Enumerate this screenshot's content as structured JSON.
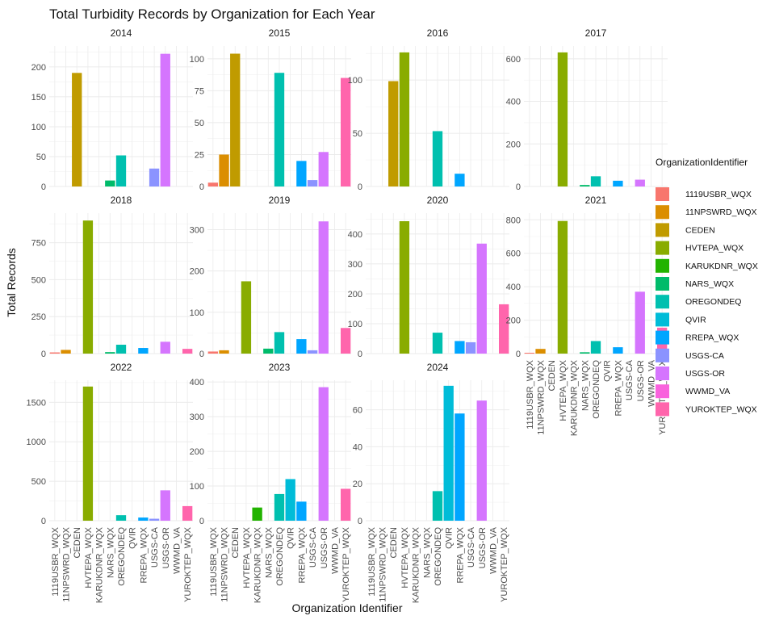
{
  "chart_data": {
    "type": "bar",
    "title": "Total Turbidity Records by Organization for Each Year",
    "xlabel": "Organization Identifier",
    "ylabel": "Total Records",
    "legend_title": "OrganizationIdentifier",
    "legend_position": "right",
    "grid": true,
    "categories": [
      "1119USBR_WQX",
      "11NPSWRD_WQX",
      "CEDEN",
      "HVTEPA_WQX",
      "KARUKDNR_WQX",
      "NARS_WQX",
      "OREGONDEQ",
      "QVIR",
      "RREPA_WQX",
      "USGS-CA",
      "USGS-OR",
      "WWMD_VA",
      "YUROKTEP_WQX"
    ],
    "colors": [
      "#F8766D",
      "#DB8E00",
      "#AEA200",
      "#64B200",
      "#00BD5C",
      "#00C1A7",
      "#00BADE",
      "#00A6FF",
      "#B385FF",
      "#EF67EB",
      "#FF63B6"
    ],
    "legend": [
      {
        "name": "1119USBR_WQX",
        "color": "#F8766D"
      },
      {
        "name": "11NPSWRD_WQX",
        "color": "#DB8E00"
      },
      {
        "name": "CEDEN",
        "color": "#C09B00"
      },
      {
        "name": "HVTEPA_WQX",
        "color": "#89AC00"
      },
      {
        "name": "KARUKDNR_WQX",
        "color": "#22B300"
      },
      {
        "name": "NARS_WQX",
        "color": "#00BB6A"
      },
      {
        "name": "OREGONDEQ",
        "color": "#00C0AF"
      },
      {
        "name": "QVIR",
        "color": "#00BCD8"
      },
      {
        "name": "RREPA_WQX",
        "color": "#00A6FF"
      },
      {
        "name": "USGS-CA",
        "color": "#8B93FF"
      },
      {
        "name": "USGS-OR",
        "color": "#D575FE"
      },
      {
        "name": "WWMD_VA",
        "color": "#F962DD"
      },
      {
        "name": "YUROKTEP_WQX",
        "color": "#FF65AC"
      }
    ],
    "panels": [
      {
        "year": "2014",
        "ylim": [
          0,
          235
        ],
        "yticks": [
          0,
          50,
          100,
          150,
          200
        ],
        "values": [
          0,
          0,
          190,
          0,
          0,
          10,
          52,
          0,
          0,
          30,
          222,
          0,
          0
        ]
      },
      {
        "year": "2015",
        "ylim": [
          0,
          110
        ],
        "yticks": [
          0,
          25,
          50,
          75,
          100
        ],
        "values": [
          3,
          25,
          104,
          0,
          0,
          0,
          89,
          0,
          20,
          5,
          27,
          0,
          85
        ]
      },
      {
        "year": "2016",
        "ylim": [
          0,
          132
        ],
        "yticks": [
          0,
          50,
          100
        ],
        "values": [
          0,
          0,
          99,
          126,
          0,
          0,
          52,
          0,
          12,
          0,
          0,
          0,
          0
        ]
      },
      {
        "year": "2017",
        "ylim": [
          0,
          660
        ],
        "yticks": [
          0,
          200,
          400,
          600
        ],
        "values": [
          0,
          0,
          0,
          630,
          0,
          7,
          48,
          0,
          27,
          0,
          32,
          0,
          0
        ]
      },
      {
        "year": "2018",
        "ylim": [
          0,
          950
        ],
        "yticks": [
          0,
          250,
          500,
          750
        ],
        "values": [
          8,
          25,
          0,
          900,
          0,
          10,
          60,
          0,
          38,
          0,
          80,
          0,
          32
        ]
      },
      {
        "year": "2019",
        "ylim": [
          0,
          340
        ],
        "yticks": [
          0,
          100,
          200,
          300
        ],
        "values": [
          5,
          8,
          0,
          175,
          0,
          12,
          52,
          0,
          35,
          8,
          320,
          0,
          62
        ]
      },
      {
        "year": "2020",
        "ylim": [
          0,
          470
        ],
        "yticks": [
          0,
          100,
          200,
          300,
          400
        ],
        "values": [
          0,
          0,
          0,
          443,
          0,
          0,
          70,
          0,
          42,
          38,
          368,
          0,
          165
        ]
      },
      {
        "year": "2021",
        "ylim": [
          0,
          840
        ],
        "yticks": [
          0,
          200,
          400,
          600,
          800
        ],
        "values": [
          5,
          28,
          0,
          793,
          0,
          8,
          75,
          0,
          38,
          0,
          370,
          0,
          155
        ]
      },
      {
        "year": "2022",
        "ylim": [
          0,
          1780
        ],
        "yticks": [
          0,
          500,
          1000,
          1500
        ],
        "values": [
          0,
          0,
          0,
          1700,
          0,
          0,
          70,
          0,
          40,
          25,
          385,
          0,
          185
        ]
      },
      {
        "year": "2023",
        "ylim": [
          0,
          405
        ],
        "yticks": [
          0,
          100,
          200,
          300,
          400
        ],
        "values": [
          0,
          0,
          0,
          0,
          38,
          0,
          77,
          120,
          55,
          0,
          385,
          0,
          92
        ]
      },
      {
        "year": "2024",
        "ylim": [
          0,
          76
        ],
        "yticks": [
          0,
          20,
          40,
          60
        ],
        "values": [
          0,
          0,
          0,
          0,
          0,
          0,
          16,
          73,
          58,
          0,
          65,
          0,
          0
        ]
      }
    ]
  }
}
